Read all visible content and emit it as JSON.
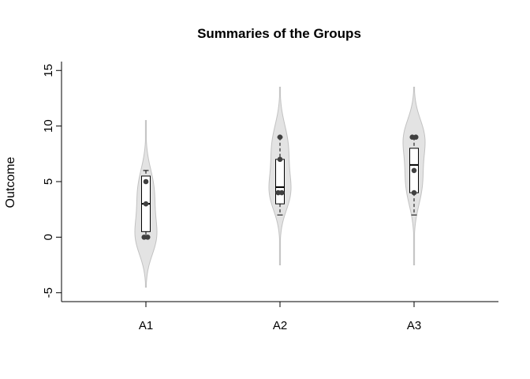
{
  "chart_data": {
    "type": "violin",
    "title": "Summaries of the Groups",
    "xlabel": "",
    "ylabel": "Outcome",
    "ylim": [
      -5.8,
      15.8
    ],
    "y_ticks": [
      -5,
      0,
      5,
      10,
      15
    ],
    "y_tick_labels": [
      "-5",
      "0",
      "5",
      "10",
      "15"
    ],
    "categories": [
      "A1",
      "A2",
      "A3"
    ],
    "groups": [
      {
        "name": "A1",
        "points": [
          0,
          0,
          3,
          5
        ],
        "box": {
          "min": 0,
          "q1": 0.5,
          "median": 3,
          "q3": 5.5,
          "max": 6
        },
        "violin_range": [
          -4.5,
          10.5
        ]
      },
      {
        "name": "A2",
        "points": [
          4,
          4,
          7,
          9
        ],
        "box": {
          "min": 2,
          "q1": 3,
          "median": 4.5,
          "q3": 7,
          "max": 9
        },
        "violin_range": [
          -2.5,
          13.5
        ]
      },
      {
        "name": "A3",
        "points": [
          4,
          6,
          9,
          9
        ],
        "box": {
          "min": 2,
          "q1": 4,
          "median": 6.5,
          "q3": 8,
          "max": 9
        },
        "violin_range": [
          -2.5,
          13.5
        ]
      }
    ],
    "grid": false,
    "colors": {
      "violin_fill": "#e3e3e3",
      "violin_stroke": "#c2c2c2",
      "box_fill": "#ffffff",
      "box_stroke": "#000000",
      "point": "#404040"
    }
  }
}
